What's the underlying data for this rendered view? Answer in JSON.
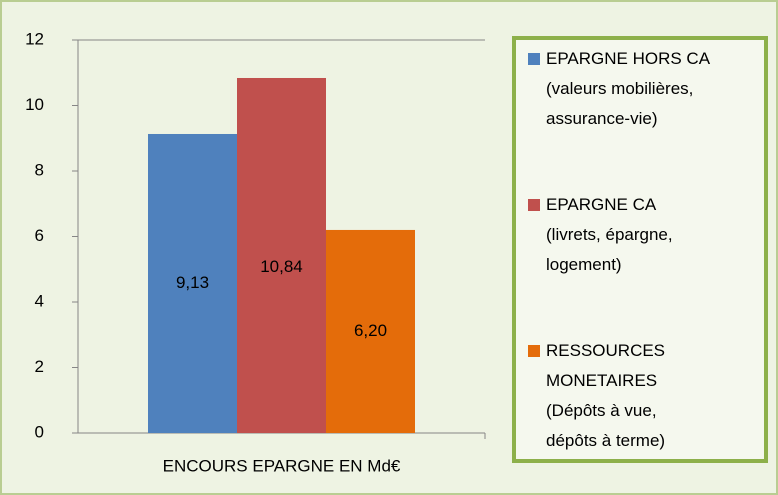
{
  "chart_data": {
    "type": "bar",
    "categories": [
      "ENCOURS EPARGNE EN Md€"
    ],
    "series": [
      {
        "name": "EPARGNE HORS CA\n(valeurs mobilières,\nassurance-vie)",
        "color": "#4f81bd",
        "values": [
          9.13
        ],
        "value_labels": [
          "9,13"
        ]
      },
      {
        "name": "EPARGNE CA\n(livrets, épargne,\nlogement)",
        "color": "#c0504d",
        "values": [
          10.84
        ],
        "value_labels": [
          "10,84"
        ]
      },
      {
        "name": "RESSOURCES\nMONETAIRES\n(Dépôts à vue,\ndépôts à terme)",
        "color": "#e46c0a",
        "values": [
          6.2
        ],
        "value_labels": [
          "6,20"
        ]
      }
    ],
    "ylim": [
      0,
      12
    ],
    "yticks": [
      0,
      2,
      4,
      6,
      8,
      10,
      12
    ],
    "grid": false,
    "legend": "right"
  }
}
